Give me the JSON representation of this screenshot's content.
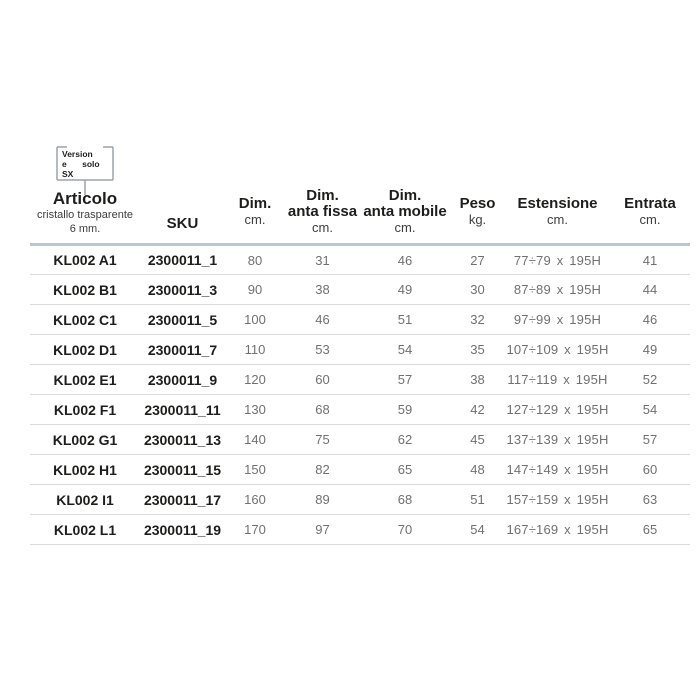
{
  "callout": {
    "lines": [
      "Version",
      "e solo",
      "SX"
    ],
    "full_text": "Versione solo SX"
  },
  "table": {
    "columns": [
      {
        "id": "articolo",
        "title": "Articolo",
        "sub1": "cristallo trasparente",
        "sub2": "6 mm."
      },
      {
        "id": "sku",
        "title": "SKU"
      },
      {
        "id": "dim",
        "title": "Dim.",
        "unit": "cm."
      },
      {
        "id": "anta-fissa",
        "title": "Dim.",
        "line2": "anta fissa",
        "unit": "cm."
      },
      {
        "id": "anta-mobile",
        "title": "Dim.",
        "line2": "anta mobile",
        "unit": "cm."
      },
      {
        "id": "peso",
        "title": "Peso",
        "unit": "kg."
      },
      {
        "id": "estensione",
        "title": "Estensione",
        "unit": "cm."
      },
      {
        "id": "entrata",
        "title": "Entrata",
        "unit": "cm."
      }
    ],
    "rows": [
      [
        "KL002 A1",
        "2300011_1",
        "80",
        "31",
        "46",
        "27",
        "77÷79 x 195H",
        "41"
      ],
      [
        "KL002 B1",
        "2300011_3",
        "90",
        "38",
        "49",
        "30",
        "87÷89 x 195H",
        "44"
      ],
      [
        "KL002 C1",
        "2300011_5",
        "100",
        "46",
        "51",
        "32",
        "97÷99 x 195H",
        "46"
      ],
      [
        "KL002 D1",
        "2300011_7",
        "110",
        "53",
        "54",
        "35",
        "107÷109 x 195H",
        "49"
      ],
      [
        "KL002 E1",
        "2300011_9",
        "120",
        "60",
        "57",
        "38",
        "117÷119 x 195H",
        "52"
      ],
      [
        "KL002 F1",
        "2300011_11",
        "130",
        "68",
        "59",
        "42",
        "127÷129 x 195H",
        "54"
      ],
      [
        "KL002 G1",
        "2300011_13",
        "140",
        "75",
        "62",
        "45",
        "137÷139 x 195H",
        "57"
      ],
      [
        "KL002 H1",
        "2300011_15",
        "150",
        "82",
        "65",
        "48",
        "147÷149 x 195H",
        "60"
      ],
      [
        "KL002 I1",
        "2300011_17",
        "160",
        "89",
        "68",
        "51",
        "157÷159 x 195H",
        "63"
      ],
      [
        "KL002 L1",
        "2300011_19",
        "170",
        "97",
        "70",
        "54",
        "167÷169 x 195H",
        "65"
      ]
    ]
  },
  "colors": {
    "text_dark": "#1d1d1b",
    "text_gray": "#707070",
    "text_sub": "#3d3d3d",
    "header_rule": "#b9c8ce",
    "row_rule": "#dadada",
    "bracket": "#9ba3a7"
  }
}
